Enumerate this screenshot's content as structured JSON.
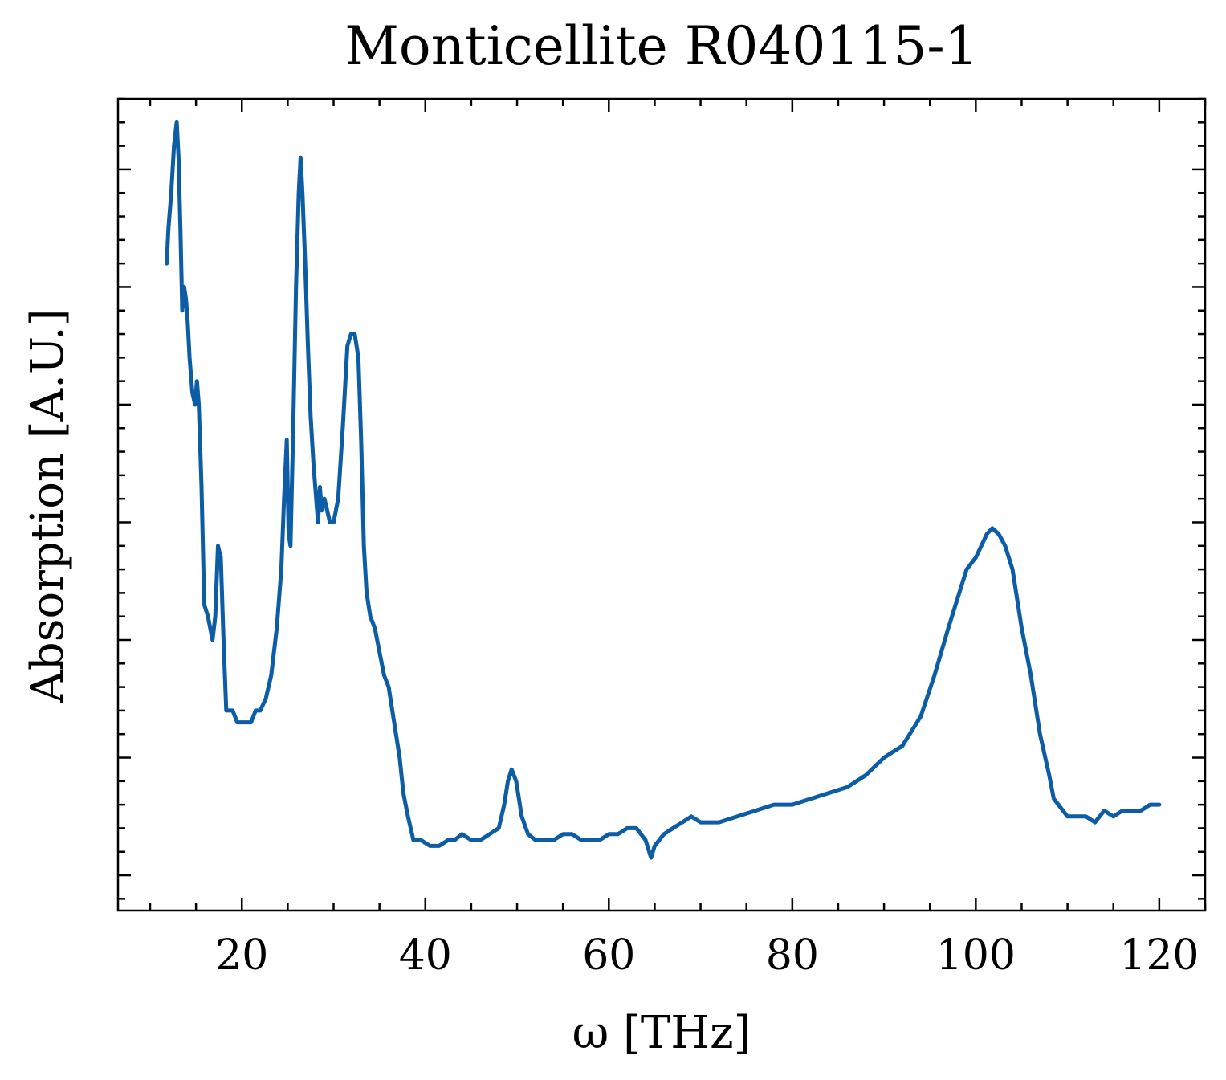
{
  "chart_data": {
    "type": "line",
    "title": "Monticellite R040115-1",
    "xlabel": "ω [THz]",
    "ylabel": "Absorption [A.U.]",
    "xlim": [
      6.5,
      125
    ],
    "ylim": [
      -0.03,
      0.66
    ],
    "x_ticks": [
      20,
      40,
      60,
      80,
      100,
      120
    ],
    "x_tick_labels": [
      "20",
      "40",
      "60",
      "80",
      "100",
      "120"
    ],
    "y_ticks_unlabeled": [
      0.0,
      0.1,
      0.2,
      0.3,
      0.4,
      0.5,
      0.6
    ],
    "grid": false,
    "series": [
      {
        "color": "#0C5DA5",
        "x": [
          11.8,
          12.0,
          12.3,
          12.6,
          12.9,
          13.1,
          13.3,
          13.5,
          13.7,
          13.9,
          14.1,
          14.3,
          14.6,
          14.9,
          15.1,
          15.3,
          15.6,
          15.9,
          16.3,
          16.8,
          17.1,
          17.4,
          17.7,
          18.0,
          18.3,
          18.6,
          19.0,
          19.5,
          20.0,
          20.5,
          21.0,
          21.5,
          22.0,
          22.6,
          23.2,
          23.8,
          24.3,
          24.6,
          24.9,
          25.1,
          25.3,
          25.6,
          25.9,
          26.2,
          26.4,
          26.6,
          26.9,
          27.2,
          27.5,
          27.8,
          28.1,
          28.3,
          28.5,
          28.7,
          29.0,
          29.3,
          29.6,
          30.0,
          30.5,
          31.0,
          31.5,
          31.9,
          32.3,
          32.7,
          33.0,
          33.3,
          33.6,
          34.0,
          34.5,
          35.0,
          35.5,
          36.0,
          36.4,
          36.8,
          37.2,
          37.6,
          38.1,
          38.7,
          39.5,
          40.5,
          41.5,
          42.5,
          43.2,
          44.0,
          45.0,
          46.0,
          47.0,
          48.0,
          48.6,
          49.0,
          49.4,
          49.9,
          50.5,
          51.2,
          52.0,
          53.0,
          54.0,
          55.0,
          56.0,
          57.0,
          58.0,
          59.0,
          60.0,
          61.0,
          62.0,
          63.0,
          64.0,
          64.6,
          65.0,
          65.5,
          66.0,
          67.0,
          68.0,
          69.0,
          70.0,
          72.0,
          74.0,
          76.0,
          78.0,
          80.0,
          82.0,
          84.0,
          86.0,
          88.0,
          90.0,
          92.0,
          94.0,
          95.5,
          97.0,
          98.0,
          99.0,
          100.0,
          100.6,
          101.2,
          101.8,
          102.5,
          103.2,
          104.0,
          105.0,
          106.0,
          107.0,
          108.0,
          108.5,
          109.0,
          109.5,
          110.0,
          111.0,
          112.0,
          113.0,
          114.0,
          115.0,
          116.0,
          117.0,
          118.0,
          119.0,
          120.0
        ],
        "y": [
          0.52,
          0.55,
          0.58,
          0.62,
          0.64,
          0.61,
          0.55,
          0.48,
          0.5,
          0.49,
          0.47,
          0.44,
          0.41,
          0.4,
          0.42,
          0.4,
          0.33,
          0.23,
          0.22,
          0.2,
          0.22,
          0.28,
          0.27,
          0.2,
          0.14,
          0.14,
          0.14,
          0.13,
          0.13,
          0.13,
          0.13,
          0.14,
          0.14,
          0.15,
          0.17,
          0.21,
          0.26,
          0.32,
          0.37,
          0.29,
          0.28,
          0.38,
          0.5,
          0.58,
          0.61,
          0.58,
          0.52,
          0.45,
          0.39,
          0.35,
          0.32,
          0.3,
          0.33,
          0.31,
          0.32,
          0.31,
          0.3,
          0.3,
          0.32,
          0.38,
          0.45,
          0.46,
          0.46,
          0.44,
          0.37,
          0.28,
          0.24,
          0.22,
          0.21,
          0.19,
          0.17,
          0.16,
          0.14,
          0.12,
          0.1,
          0.07,
          0.05,
          0.03,
          0.03,
          0.025,
          0.025,
          0.03,
          0.03,
          0.035,
          0.03,
          0.03,
          0.035,
          0.04,
          0.06,
          0.08,
          0.09,
          0.08,
          0.05,
          0.035,
          0.03,
          0.03,
          0.03,
          0.035,
          0.035,
          0.03,
          0.03,
          0.03,
          0.035,
          0.035,
          0.04,
          0.04,
          0.03,
          0.015,
          0.025,
          0.03,
          0.035,
          0.04,
          0.045,
          0.05,
          0.045,
          0.045,
          0.05,
          0.055,
          0.06,
          0.06,
          0.065,
          0.07,
          0.075,
          0.085,
          0.1,
          0.11,
          0.135,
          0.17,
          0.21,
          0.235,
          0.26,
          0.27,
          0.28,
          0.29,
          0.295,
          0.29,
          0.28,
          0.26,
          0.21,
          0.17,
          0.12,
          0.085,
          0.065,
          0.06,
          0.055,
          0.05,
          0.05,
          0.05,
          0.045,
          0.055,
          0.05,
          0.055,
          0.055,
          0.055,
          0.06,
          0.06
        ]
      }
    ]
  }
}
